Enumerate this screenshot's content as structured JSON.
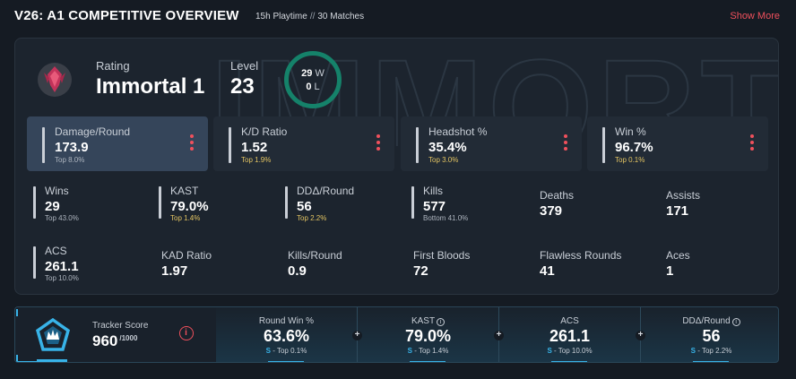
{
  "header": {
    "title": "V26: A1 COMPETITIVE OVERVIEW",
    "playtime": "15h Playtime",
    "separator": "//",
    "matches": "30 Matches",
    "show_more": "Show More"
  },
  "watermark_text": "IMMORTAL",
  "rank": {
    "rating_label": "Rating",
    "rating_value": "Immortal 1",
    "level_label": "Level",
    "level_value": "23",
    "wins": "29",
    "wins_unit": "W",
    "losses": "0",
    "losses_unit": "L"
  },
  "top_stats": [
    {
      "label": "Damage/Round",
      "value": "173.9",
      "sub": "Top 8.0%"
    },
    {
      "label": "K/D Ratio",
      "value": "1.52",
      "sub": "Top 1.9%"
    },
    {
      "label": "Headshot %",
      "value": "35.4%",
      "sub": "Top 3.0%"
    },
    {
      "label": "Win %",
      "value": "96.7%",
      "sub": "Top 0.1%"
    }
  ],
  "grid_stats": [
    {
      "label": "Wins",
      "value": "29",
      "sub": "Top 43.0%"
    },
    {
      "label": "KAST",
      "value": "79.0%",
      "sub": "Top 1.4%"
    },
    {
      "label": "DDΔ/Round",
      "value": "56",
      "sub": "Top 2.2%"
    },
    {
      "label": "Kills",
      "value": "577",
      "sub": "Bottom 41.0%"
    },
    {
      "label": "Deaths",
      "value": "379"
    },
    {
      "label": "Assists",
      "value": "171"
    },
    {
      "label": "ACS",
      "value": "261.1",
      "sub": "Top 10.0%"
    },
    {
      "label": "KAD Ratio",
      "value": "1.97"
    },
    {
      "label": "Kills/Round",
      "value": "0.9"
    },
    {
      "label": "First Bloods",
      "value": "72"
    },
    {
      "label": "Flawless Rounds",
      "value": "41"
    },
    {
      "label": "Aces",
      "value": "1"
    }
  ],
  "tracker": {
    "label": "Tracker Score",
    "value": "960",
    "max": "/1000",
    "info_glyph": "i",
    "cells": [
      {
        "label": "Round Win %",
        "value": "63.6%",
        "tier": "S",
        "sub": "- Top 0.1%"
      },
      {
        "label": "KAST",
        "value": "79.0%",
        "tier": "S",
        "sub": "- Top 1.4%"
      },
      {
        "label": "ACS",
        "value": "261.1",
        "tier": "S",
        "sub": "- Top 10.0%"
      },
      {
        "label": "DDΔ/Round",
        "value": "56",
        "tier": "S",
        "sub": "- Top 2.2%"
      }
    ]
  },
  "colors": {
    "accent_red": "#f0505c",
    "win_ring": "#15826a",
    "gold": "#e3c462",
    "tier_blue": "#38b3e8"
  }
}
